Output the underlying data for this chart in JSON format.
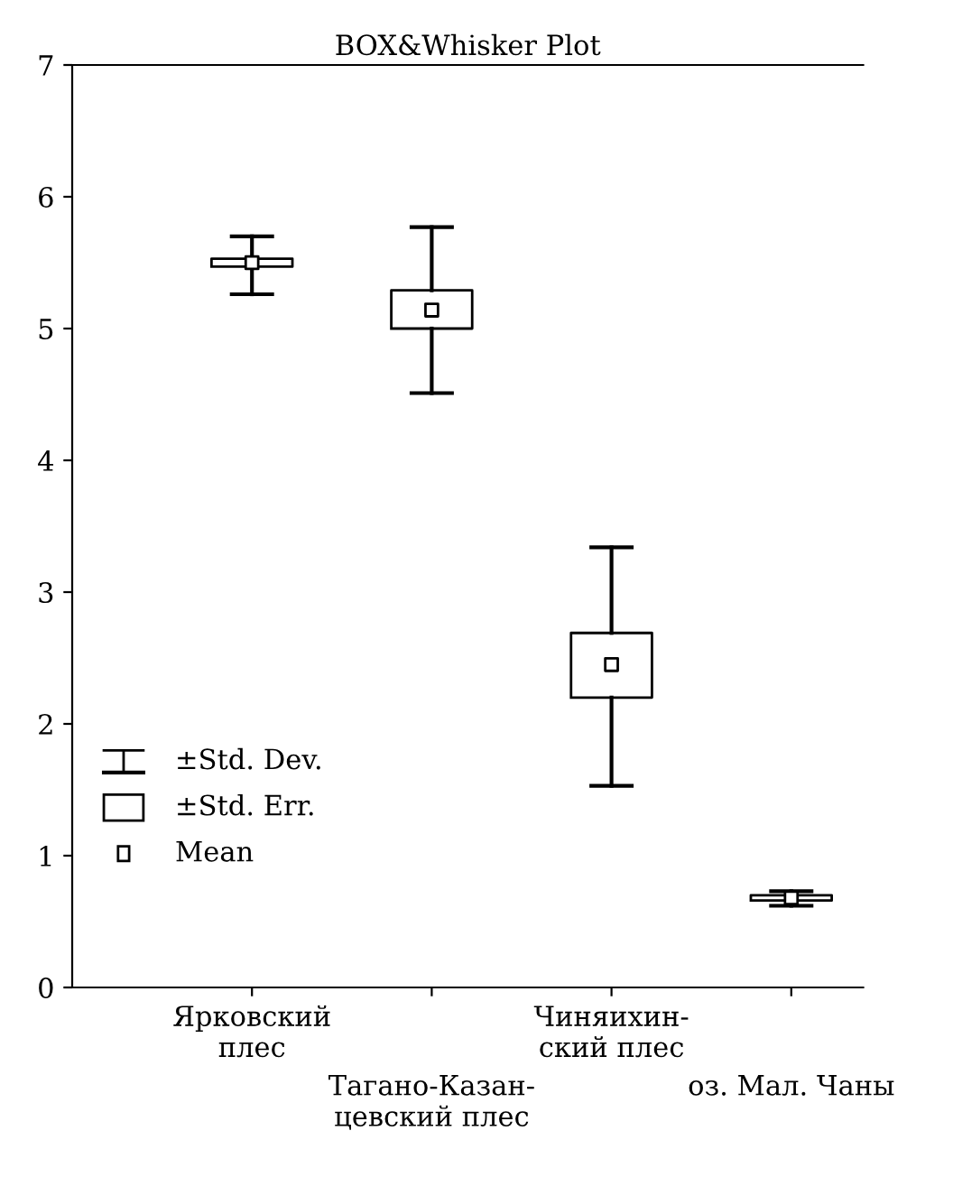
{
  "chart_data": {
    "type": "box",
    "title": "BOX&Whisker Plot",
    "categories": [
      "Ярковский\nплес",
      "Тагано-Казан-\nцевский плес",
      "Чиняихин-\nский плес",
      "оз. Мал. Чаны"
    ],
    "boxes": [
      {
        "low": 5.26,
        "q1": 5.47,
        "q3": 5.53,
        "high": 5.7,
        "mean": 5.5
      },
      {
        "low": 4.51,
        "q1": 5.0,
        "q3": 5.29,
        "high": 5.77,
        "mean": 5.14
      },
      {
        "low": 1.53,
        "q1": 2.2,
        "q3": 2.69,
        "high": 3.34,
        "mean": 2.45
      },
      {
        "low": 0.62,
        "q1": 0.66,
        "q3": 0.7,
        "high": 0.73,
        "mean": 0.68
      }
    ],
    "annotations": [
      "±Std. Dev.",
      "±Std. Err.",
      "Mean"
    ],
    "ylim": [
      0,
      7
    ],
    "yticks": [
      0,
      1,
      2,
      3,
      4,
      5,
      6,
      7
    ],
    "grid": false
  }
}
